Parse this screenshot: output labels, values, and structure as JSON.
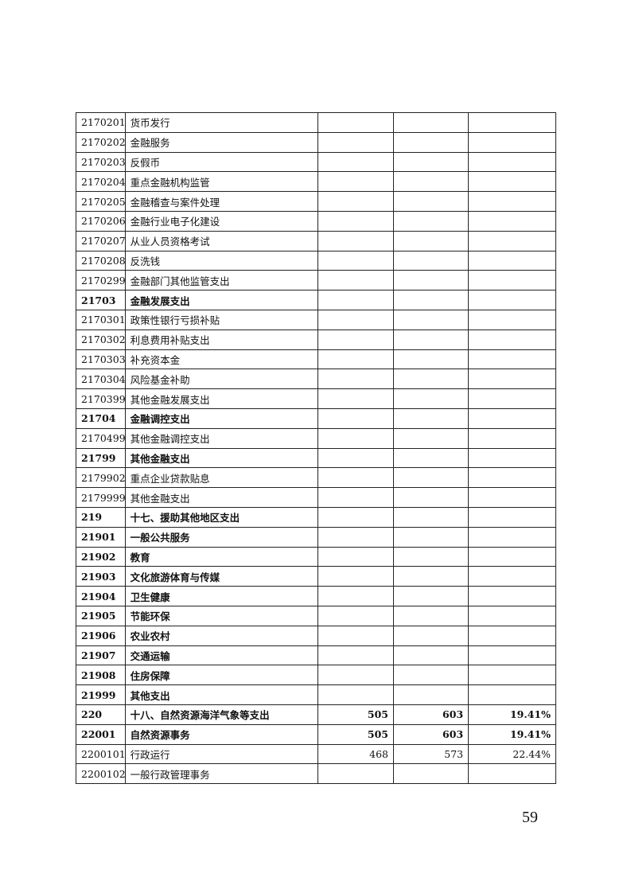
{
  "rows": [
    {
      "code": "2170201",
      "name": "货币发行",
      "v1": "",
      "v2": "",
      "pct": "",
      "bold": false
    },
    {
      "code": "2170202",
      "name": "金融服务",
      "v1": "",
      "v2": "",
      "pct": "",
      "bold": false
    },
    {
      "code": "2170203",
      "name": "反假币",
      "v1": "",
      "v2": "",
      "pct": "",
      "bold": false
    },
    {
      "code": "2170204",
      "name": "重点金融机构监管",
      "v1": "",
      "v2": "",
      "pct": "",
      "bold": false
    },
    {
      "code": "2170205",
      "name": "金融稽查与案件处理",
      "v1": "",
      "v2": "",
      "pct": "",
      "bold": false
    },
    {
      "code": "2170206",
      "name": "金融行业电子化建设",
      "v1": "",
      "v2": "",
      "pct": "",
      "bold": false
    },
    {
      "code": "2170207",
      "name": "从业人员资格考试",
      "v1": "",
      "v2": "",
      "pct": "",
      "bold": false
    },
    {
      "code": "2170208",
      "name": "反洗钱",
      "v1": "",
      "v2": "",
      "pct": "",
      "bold": false
    },
    {
      "code": "2170299",
      "name": "金融部门其他监管支出",
      "v1": "",
      "v2": "",
      "pct": "",
      "bold": false
    },
    {
      "code": "21703",
      "name": "金融发展支出",
      "v1": "",
      "v2": "",
      "pct": "",
      "bold": true
    },
    {
      "code": "2170301",
      "name": "政策性银行亏损补贴",
      "v1": "",
      "v2": "",
      "pct": "",
      "bold": false
    },
    {
      "code": "2170302",
      "name": "利息费用补贴支出",
      "v1": "",
      "v2": "",
      "pct": "",
      "bold": false
    },
    {
      "code": "2170303",
      "name": "补充资本金",
      "v1": "",
      "v2": "",
      "pct": "",
      "bold": false
    },
    {
      "code": "2170304",
      "name": "风险基金补助",
      "v1": "",
      "v2": "",
      "pct": "",
      "bold": false
    },
    {
      "code": "2170399",
      "name": "其他金融发展支出",
      "v1": "",
      "v2": "",
      "pct": "",
      "bold": false
    },
    {
      "code": "21704",
      "name": "金融调控支出",
      "v1": "",
      "v2": "",
      "pct": "",
      "bold": true
    },
    {
      "code": "2170499",
      "name": "其他金融调控支出",
      "v1": "",
      "v2": "",
      "pct": "",
      "bold": false
    },
    {
      "code": "21799",
      "name": "其他金融支出",
      "v1": "",
      "v2": "",
      "pct": "",
      "bold": true
    },
    {
      "code": "2179902",
      "name": "重点企业贷款贴息",
      "v1": "",
      "v2": "",
      "pct": "",
      "bold": false
    },
    {
      "code": "2179999",
      "name": "其他金融支出",
      "v1": "",
      "v2": "",
      "pct": "",
      "bold": false
    },
    {
      "code": "219",
      "name": "十七、援助其他地区支出",
      "v1": "",
      "v2": "",
      "pct": "",
      "bold": true
    },
    {
      "code": "21901",
      "name": "一般公共服务",
      "v1": "",
      "v2": "",
      "pct": "",
      "bold": true
    },
    {
      "code": "21902",
      "name": "教育",
      "v1": "",
      "v2": "",
      "pct": "",
      "bold": true
    },
    {
      "code": "21903",
      "name": "文化旅游体育与传媒",
      "v1": "",
      "v2": "",
      "pct": "",
      "bold": true
    },
    {
      "code": "21904",
      "name": "卫生健康",
      "v1": "",
      "v2": "",
      "pct": "",
      "bold": true
    },
    {
      "code": "21905",
      "name": "节能环保",
      "v1": "",
      "v2": "",
      "pct": "",
      "bold": true
    },
    {
      "code": "21906",
      "name": "农业农村",
      "v1": "",
      "v2": "",
      "pct": "",
      "bold": true
    },
    {
      "code": "21907",
      "name": "交通运输",
      "v1": "",
      "v2": "",
      "pct": "",
      "bold": true
    },
    {
      "code": "21908",
      "name": "住房保障",
      "v1": "",
      "v2": "",
      "pct": "",
      "bold": true
    },
    {
      "code": "21999",
      "name": "其他支出",
      "v1": "",
      "v2": "",
      "pct": "",
      "bold": true
    },
    {
      "code": "220",
      "name": "十八、自然资源海洋气象等支出",
      "v1": "505",
      "v2": "603",
      "pct": "19.41%",
      "bold": true
    },
    {
      "code": "22001",
      "name": "自然资源事务",
      "v1": "505",
      "v2": "603",
      "pct": "19.41%",
      "bold": true
    },
    {
      "code": "2200101",
      "name": "行政运行",
      "v1": "468",
      "v2": "573",
      "pct": "22.44%",
      "bold": false
    },
    {
      "code": "2200102",
      "name": "一般行政管理事务",
      "v1": "",
      "v2": "",
      "pct": "",
      "bold": false
    }
  ],
  "page_number": "59"
}
